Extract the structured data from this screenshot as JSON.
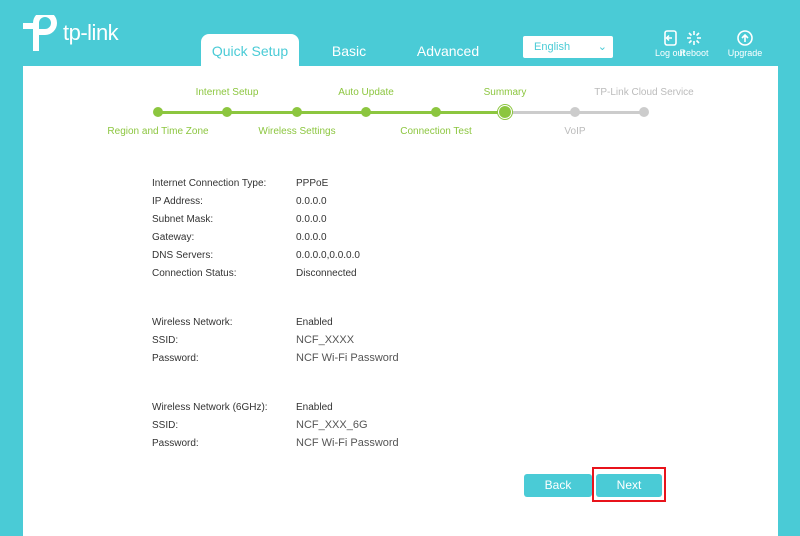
{
  "header": {
    "brand": "tp-link",
    "tabs": [
      {
        "label": "Quick Setup",
        "active": true
      },
      {
        "label": "Basic"
      },
      {
        "label": "Advanced"
      }
    ],
    "language": "English",
    "buttons": [
      {
        "label": "Log out",
        "icon": "logout-icon"
      },
      {
        "label": "Reboot",
        "icon": "reboot-icon"
      },
      {
        "label": "Upgrade",
        "icon": "upgrade-icon"
      }
    ]
  },
  "steps": [
    {
      "label": "Region and Time Zone",
      "done": true
    },
    {
      "label": "Internet Setup",
      "done": true
    },
    {
      "label": "Wireless Settings",
      "done": true
    },
    {
      "label": "Auto Update",
      "done": true
    },
    {
      "label": "Connection Test",
      "done": true
    },
    {
      "label": "Summary",
      "current": true
    },
    {
      "label": "VoIP",
      "done": false
    },
    {
      "label": "TP-Link Cloud Service",
      "done": false
    }
  ],
  "internet": [
    {
      "label": "Internet Connection Type:",
      "value": "PPPoE"
    },
    {
      "label": "IP Address:",
      "value": "0.0.0.0"
    },
    {
      "label": "Subnet Mask:",
      "value": "0.0.0.0"
    },
    {
      "label": "Gateway:",
      "value": "0.0.0.0"
    },
    {
      "label": "DNS Servers:",
      "value": "0.0.0.0,0.0.0.0"
    },
    {
      "label": "Connection Status:",
      "value": "Disconnected"
    }
  ],
  "wireless": [
    {
      "label": "Wireless Network:",
      "value": "Enabled"
    },
    {
      "label": "SSID:",
      "value": "NCF_XXXX"
    },
    {
      "label": "Password:",
      "value": "NCF Wi-Fi Password"
    }
  ],
  "wireless6": [
    {
      "label": "Wireless Network (6GHz):",
      "value": "Enabled"
    },
    {
      "label": "SSID:",
      "value": "NCF_XXX_6G"
    },
    {
      "label": "Password:",
      "value": "NCF Wi-Fi Password"
    }
  ],
  "actions": {
    "back": "Back",
    "next": "Next"
  },
  "colors": {
    "accent": "#4acbd6",
    "progress": "#8cc63f",
    "highlight": "#e8131b"
  }
}
